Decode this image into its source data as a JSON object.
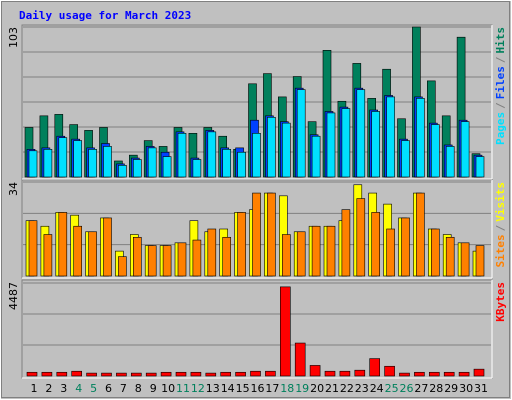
{
  "title": "Daily usage for March 2023",
  "chart_data": [
    {
      "type": "bar",
      "ylim": [
        0,
        103
      ],
      "yticks": [
        103
      ],
      "legend_separator": "/",
      "series": [
        {
          "name": "Hits",
          "color": "#00805c",
          "values": [
            34,
            42,
            43,
            36,
            32,
            34,
            11,
            15,
            25,
            21,
            34,
            30,
            34,
            28,
            19,
            64,
            71,
            55,
            69,
            38,
            87,
            52,
            78,
            54,
            74,
            40,
            103,
            66,
            42,
            96,
            16
          ]
        },
        {
          "name": "Files",
          "color": "#0040ff",
          "values": [
            19,
            20,
            28,
            26,
            20,
            23,
            9,
            13,
            21,
            17,
            31,
            13,
            32,
            20,
            20,
            39,
            42,
            38,
            61,
            29,
            45,
            48,
            61,
            46,
            56,
            26,
            55,
            37,
            22,
            39,
            15
          ]
        },
        {
          "name": "Pages",
          "color": "#00e0ff",
          "values": [
            18,
            19,
            27,
            25,
            19,
            21,
            8,
            12,
            20,
            14,
            30,
            12,
            31,
            19,
            17,
            30,
            41,
            37,
            60,
            28,
            44,
            47,
            60,
            45,
            55,
            25,
            54,
            36,
            21,
            38,
            14
          ]
        }
      ]
    },
    {
      "type": "bar",
      "ylim": [
        0,
        34
      ],
      "yticks": [
        34
      ],
      "legend_separator": "/",
      "series": [
        {
          "name": "Visits",
          "color": "#ffff00",
          "values": [
            20,
            18,
            23,
            22,
            16,
            21,
            9,
            15,
            11,
            11,
            12,
            20,
            16,
            17,
            23,
            24,
            30,
            29,
            16,
            18,
            18,
            20,
            33,
            30,
            26,
            21,
            30,
            17,
            15,
            12,
            9
          ]
        },
        {
          "name": "Sites",
          "color": "#ff8000",
          "values": [
            20,
            15,
            23,
            18,
            16,
            21,
            7,
            14,
            11,
            11,
            12,
            13,
            17,
            14,
            23,
            30,
            30,
            15,
            16,
            18,
            18,
            24,
            28,
            23,
            17,
            21,
            30,
            17,
            14,
            12,
            11
          ]
        }
      ]
    },
    {
      "type": "bar",
      "ylim": [
        0,
        4487
      ],
      "yticks": [
        4487
      ],
      "categories": [
        "1",
        "2",
        "3",
        "4",
        "5",
        "6",
        "7",
        "8",
        "9",
        "10",
        "11",
        "12",
        "13",
        "14",
        "15",
        "16",
        "17",
        "18",
        "19",
        "20",
        "21",
        "22",
        "23",
        "24",
        "25",
        "26",
        "27",
        "28",
        "29",
        "30",
        "31"
      ],
      "category_colors": [
        "#000000",
        "#000000",
        "#000000",
        "#00805c",
        "#00805c",
        "#000000",
        "#000000",
        "#000000",
        "#000000",
        "#000000",
        "#00805c",
        "#00805c",
        "#000000",
        "#000000",
        "#000000",
        "#000000",
        "#000000",
        "#00805c",
        "#00805c",
        "#000000",
        "#000000",
        "#000000",
        "#000000",
        "#000000",
        "#00805c",
        "#00805c",
        "#000000",
        "#000000",
        "#000000",
        "#000000",
        "#000000"
      ],
      "series": [
        {
          "name": "KBytes",
          "color": "#ff0000",
          "values": [
            180,
            180,
            180,
            230,
            140,
            140,
            140,
            140,
            140,
            180,
            180,
            180,
            140,
            180,
            180,
            230,
            230,
            4300,
            1590,
            510,
            230,
            230,
            280,
            840,
            470,
            140,
            180,
            180,
            180,
            180,
            330
          ]
        }
      ]
    }
  ]
}
